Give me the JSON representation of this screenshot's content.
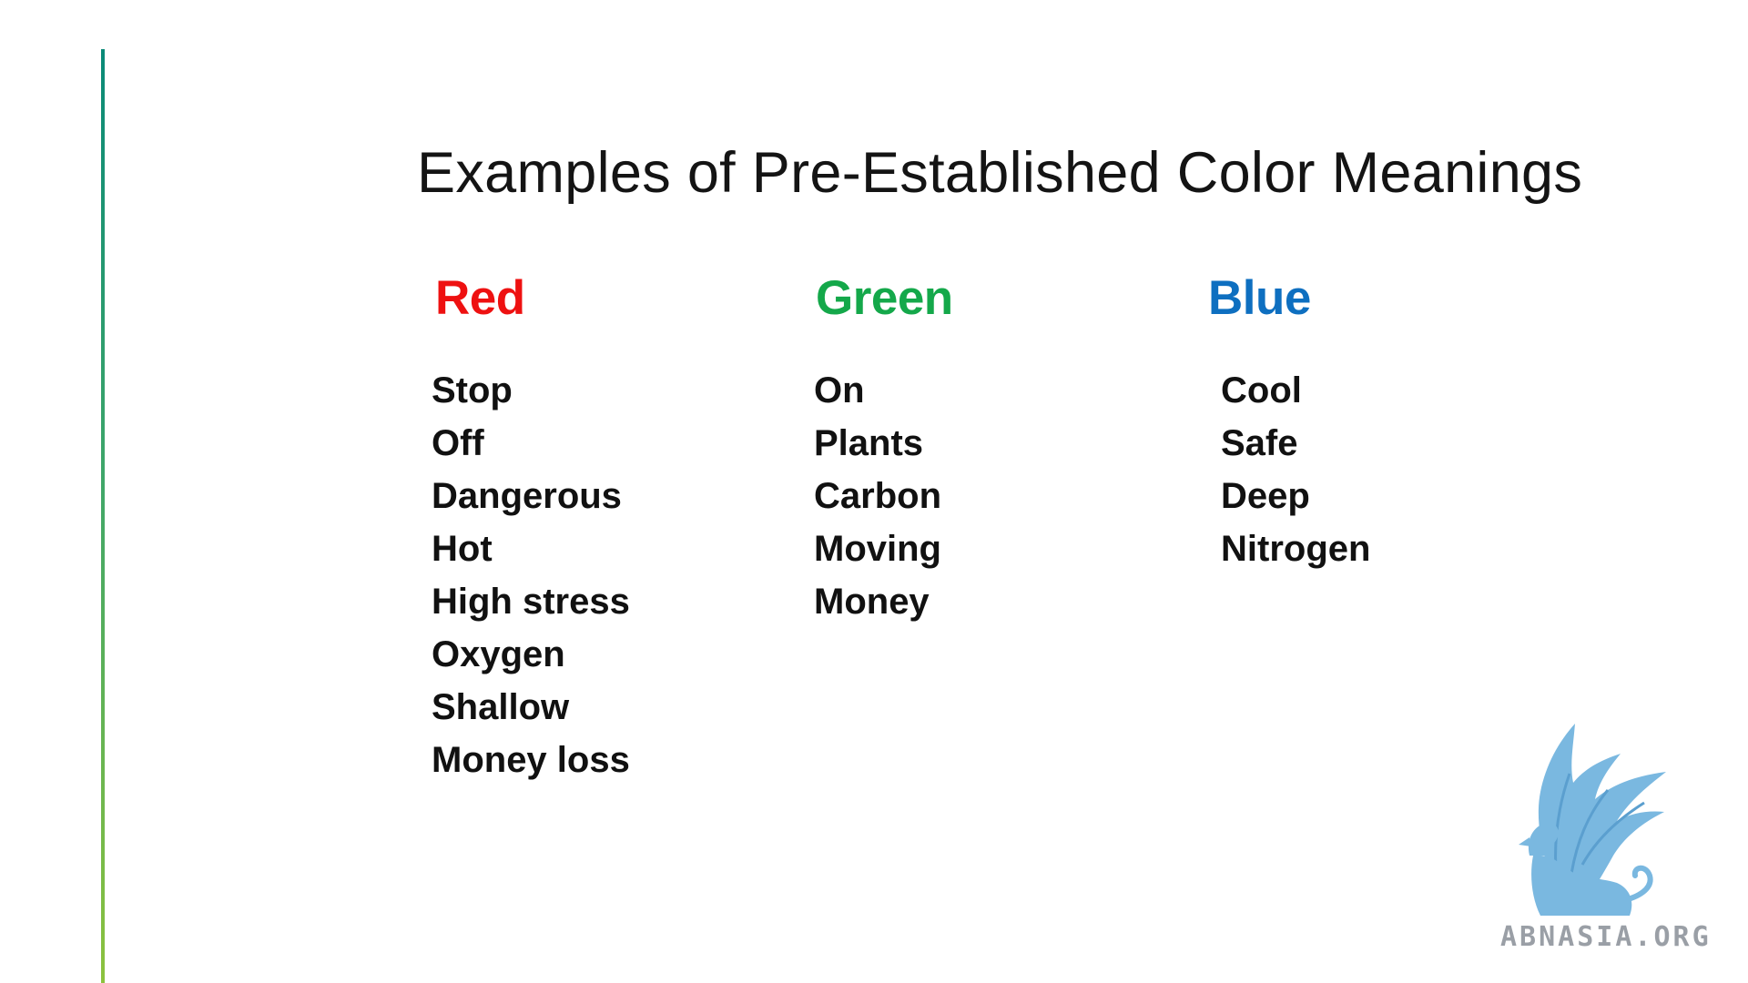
{
  "slide": {
    "title": "Examples of Pre-Established Color Meanings",
    "accent_line_colors": [
      "#0a8a78",
      "#8cc23e"
    ]
  },
  "columns": [
    {
      "heading": "Red",
      "color": "#ee1111",
      "items": [
        "Stop",
        "Off",
        "Dangerous",
        "Hot",
        "High stress",
        "Oxygen",
        "Shallow",
        "Money loss"
      ]
    },
    {
      "heading": "Green",
      "color": "#14a84a",
      "items": [
        "On",
        "Plants",
        "Carbon",
        "Moving",
        "Money"
      ]
    },
    {
      "heading": "Blue",
      "color": "#0e6fc0",
      "items": [
        "Cool",
        "Safe",
        "Deep",
        "Nitrogen"
      ]
    }
  ],
  "watermark": {
    "text": "ABNASIA.ORG",
    "icon": "griffin-logo-icon",
    "color": "#7ab8e0"
  }
}
